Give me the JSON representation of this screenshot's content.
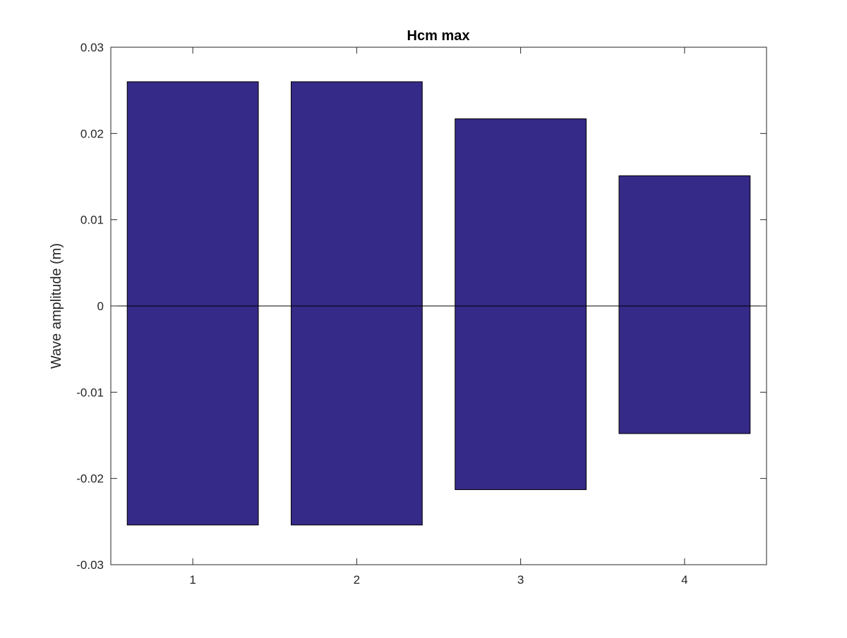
{
  "chart_data": {
    "type": "bar",
    "title": "Hcm max",
    "xlabel": "",
    "ylabel": "Wave amplitude (m)",
    "categories": [
      "1",
      "2",
      "3",
      "4"
    ],
    "x": [
      1,
      2,
      3,
      4
    ],
    "series": [
      {
        "values": [
          0.026,
          0.026,
          0.0217,
          0.0151
        ]
      },
      {
        "values": [
          -0.0254,
          -0.0254,
          -0.0213,
          -0.0148
        ]
      }
    ],
    "xlim": [
      0.5,
      4.5
    ],
    "ylim": [
      -0.03,
      0.03
    ],
    "yticks": [
      -0.03,
      -0.02,
      -0.01,
      0,
      0.01,
      0.02,
      0.03
    ],
    "ytick_labels": [
      "-0.03",
      "-0.02",
      "-0.01",
      "0",
      "0.01",
      "0.02",
      "0.03"
    ],
    "xticks": [
      1,
      2,
      3,
      4
    ],
    "xtick_labels": [
      "1",
      "2",
      "3",
      "4"
    ],
    "bar_color": "#352a87",
    "edge_color": "#000000",
    "grid": false,
    "legend": "none",
    "baseline": 0
  }
}
